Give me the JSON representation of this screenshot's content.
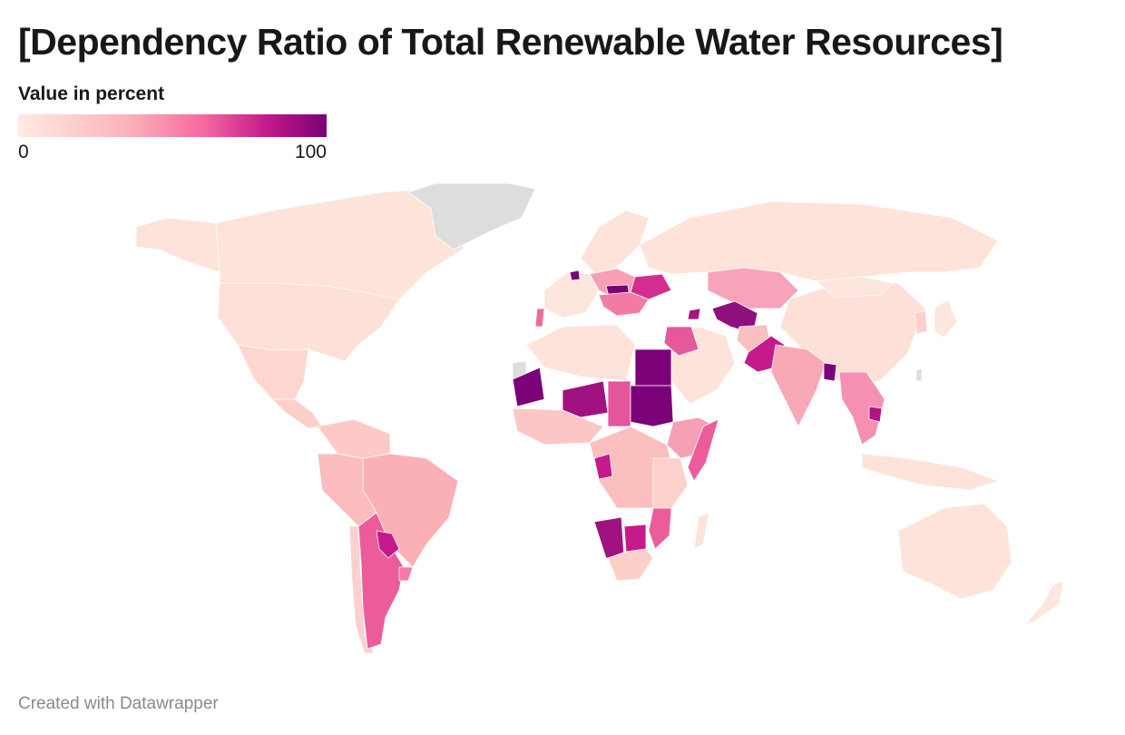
{
  "header": {
    "title": "[Dependency Ratio of Total Renewable Water Resources]"
  },
  "legend": {
    "title": "Value in percent",
    "min_label": "0",
    "max_label": "100",
    "scale_colors": [
      "#feebe2",
      "#fbb4b9",
      "#f768a1",
      "#c51b8a",
      "#7a0177"
    ]
  },
  "footer": {
    "credit": "Created with Datawrapper"
  },
  "colors": {
    "no_data": "#dddddd",
    "background": "#ffffff",
    "border": "#ffffff"
  }
}
